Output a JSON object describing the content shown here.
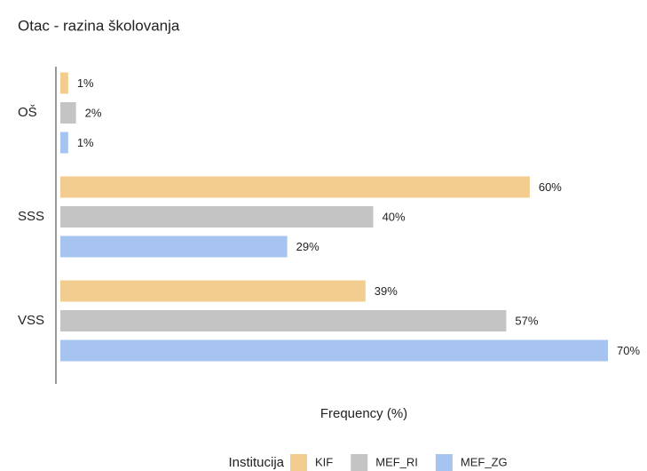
{
  "chart_data": {
    "type": "bar",
    "orientation": "horizontal",
    "title": "Otac - razina školovanja",
    "x_label": "Frequency (%)",
    "legend_title": "Institucija",
    "legend_position": "bottom",
    "categories": [
      "OŠ",
      "SSS",
      "VSS"
    ],
    "series": [
      {
        "name": "KIF",
        "color": "#f2cd8f",
        "values": [
          1,
          60,
          39
        ],
        "value_labels": [
          "1%",
          "60%",
          "39%"
        ]
      },
      {
        "name": "MEF_RI",
        "color": "#c4c4c4",
        "values": [
          2,
          40,
          57
        ],
        "value_labels": [
          "2%",
          "40%",
          "57%"
        ]
      },
      {
        "name": "MEF_ZG",
        "color": "#a7c4f0",
        "values": [
          1,
          29,
          70
        ],
        "value_labels": [
          "1%",
          "29%",
          "70%"
        ]
      }
    ],
    "xlim": [
      0,
      70
    ]
  }
}
